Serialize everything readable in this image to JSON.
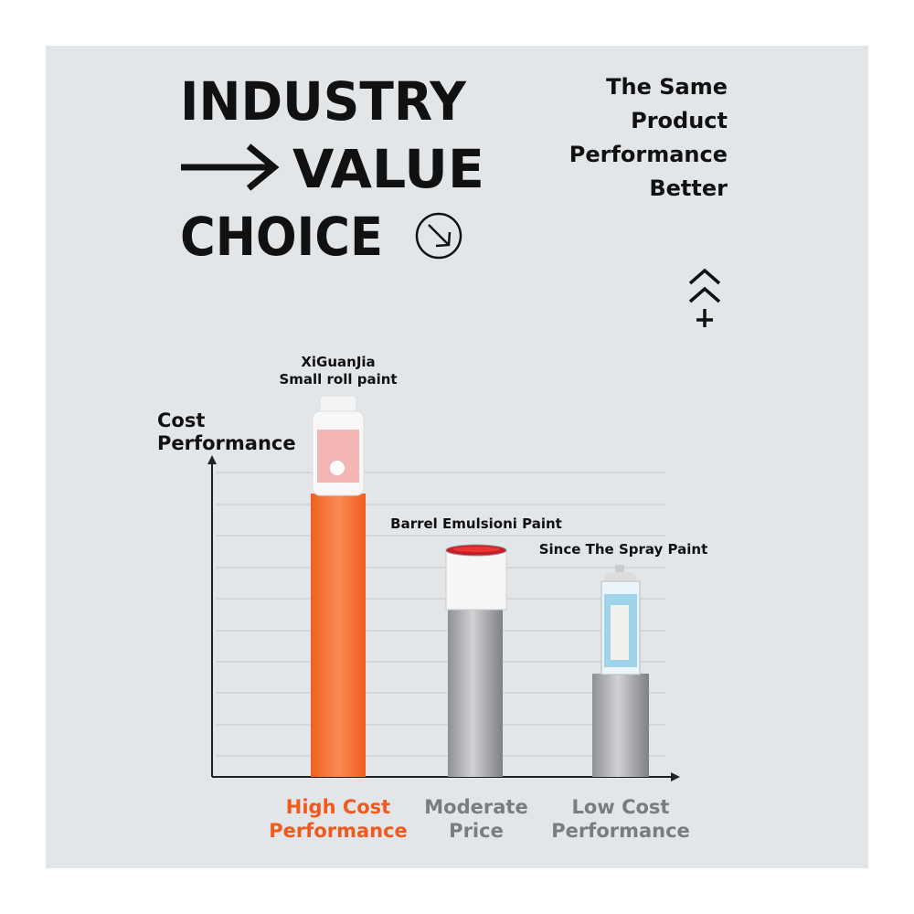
{
  "header": {
    "title_lines": [
      "INDUSTRY",
      "VALUE",
      "CHOICE"
    ],
    "tagline_lines": [
      "The Same",
      "Product",
      "Performance",
      "Better"
    ]
  },
  "chart": {
    "axis_label_lines": [
      "Cost",
      "Performance"
    ],
    "products": [
      {
        "name_lines": [
          "XiGuanJia",
          "Small roll paint"
        ],
        "category_lines": [
          "High Cost",
          "Performance"
        ]
      },
      {
        "name_lines": [
          "Barrel Emulsioni Paint"
        ],
        "category_lines": [
          "Moderate",
          "Price"
        ]
      },
      {
        "name_lines": [
          "Since The Spray Paint"
        ],
        "category_lines": [
          "Low Cost",
          "Performance"
        ]
      }
    ]
  }
}
